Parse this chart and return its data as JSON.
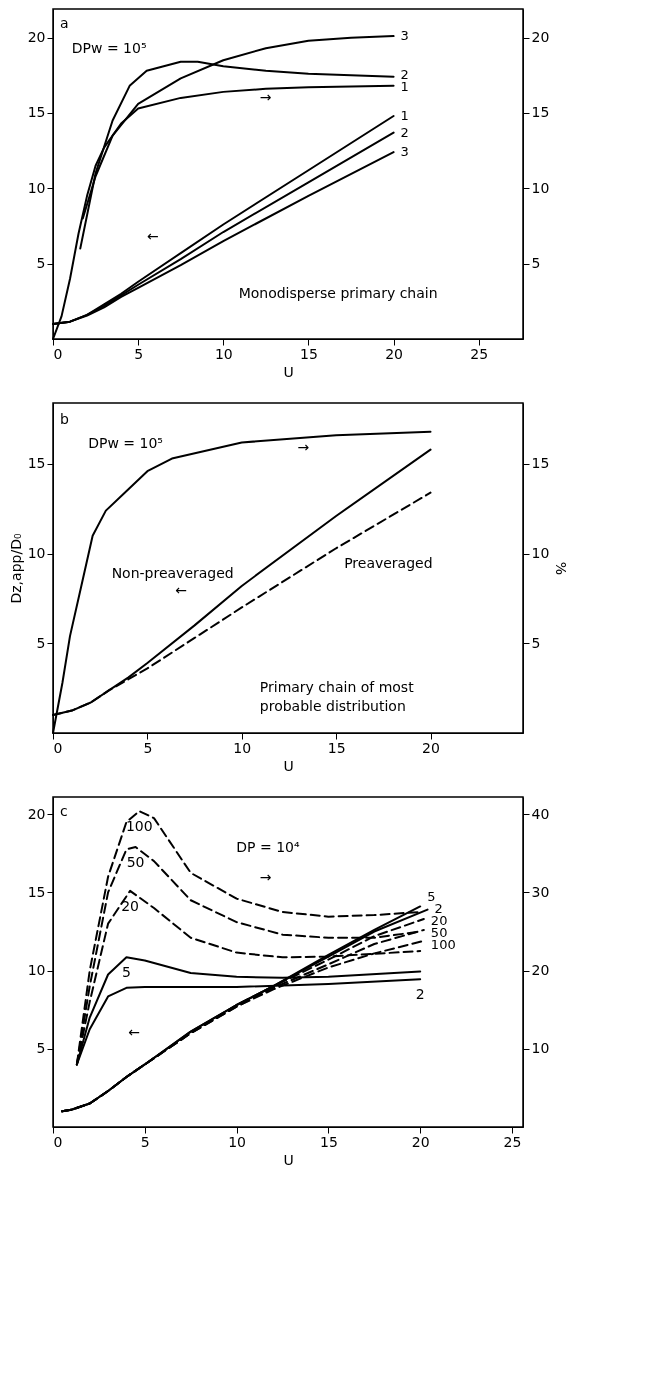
{
  "chart_data": [
    {
      "type": "line",
      "xlabel": "U",
      "xlim": [
        0,
        27.6
      ],
      "xticks": [
        0,
        5,
        10,
        15,
        20,
        25
      ],
      "ylim": [
        0,
        21.9
      ],
      "yticks": [
        5,
        10,
        15,
        20
      ],
      "y2lim": [
        0,
        21.9
      ],
      "y2ticks": [
        5,
        10,
        15,
        20
      ],
      "annotations": [
        "a",
        "DPw = 10⁵",
        "→",
        "←",
        "Monodisperse primary chain"
      ],
      "series": [
        {
          "name": "1",
          "color": "#000000",
          "axis": "y",
          "line_style": "solid",
          "x": [
            0,
            1,
            2,
            3,
            4,
            5,
            7.5,
            10,
            15,
            20
          ],
          "values": [
            1.0,
            1.15,
            1.6,
            2.3,
            3.0,
            3.8,
            5.7,
            7.6,
            11.2,
            14.8
          ]
        },
        {
          "name": "2",
          "color": "#000000",
          "axis": "y",
          "line_style": "solid",
          "x": [
            0,
            1,
            2,
            3,
            4,
            5,
            7.5,
            10,
            15,
            20
          ],
          "values": [
            1.0,
            1.15,
            1.6,
            2.2,
            2.9,
            3.6,
            5.3,
            7.1,
            10.4,
            13.7
          ]
        },
        {
          "name": "3",
          "color": "#000000",
          "axis": "y",
          "line_style": "solid",
          "x": [
            0,
            1,
            2,
            3,
            4,
            5,
            7.5,
            10,
            15,
            20
          ],
          "values": [
            1.0,
            1.15,
            1.55,
            2.1,
            2.8,
            3.4,
            4.9,
            6.5,
            9.5,
            12.4
          ]
        },
        {
          "name": "1",
          "color": "#000000",
          "axis": "y2",
          "line_style": "solid",
          "x": [
            0,
            0.5,
            1,
            1.5,
            2,
            2.5,
            3,
            4,
            5,
            7.5,
            10,
            12.5,
            15,
            20
          ],
          "values": [
            0,
            1.5,
            4.0,
            7.0,
            9.5,
            11.5,
            12.7,
            14.3,
            15.3,
            16.0,
            16.4,
            16.6,
            16.7,
            16.8
          ]
        },
        {
          "name": "2",
          "color": "#000000",
          "axis": "y2",
          "line_style": "solid",
          "x": [
            1.6,
            2.5,
            3.5,
            4.5,
            5.5,
            7.5,
            8.5,
            10,
            12.5,
            15,
            17.5,
            20
          ],
          "values": [
            6.0,
            11.0,
            14.5,
            16.8,
            17.8,
            18.4,
            18.4,
            18.1,
            17.8,
            17.6,
            17.5,
            17.4
          ]
        },
        {
          "name": "3",
          "color": "#000000",
          "axis": "y2",
          "line_style": "solid",
          "x": [
            1.75,
            2.5,
            3.5,
            5,
            7.5,
            10,
            12.5,
            15,
            17.5,
            20
          ],
          "values": [
            8.0,
            10.8,
            13.5,
            15.6,
            17.3,
            18.5,
            19.3,
            19.8,
            20.0,
            20.1
          ]
        }
      ]
    },
    {
      "type": "line",
      "xlabel": "U",
      "ylabel": "Dz,app/D₀",
      "y2label": "%",
      "xlim": [
        0,
        24.9
      ],
      "xticks": [
        0,
        5,
        10,
        15,
        20
      ],
      "ylim": [
        0,
        18.4
      ],
      "yticks": [
        5,
        10,
        15
      ],
      "y2lim": [
        0,
        18.4
      ],
      "y2ticks": [
        5,
        10,
        15
      ],
      "annotations": [
        "b",
        "DPw = 10⁵",
        "→",
        "←",
        "Primary chain of most",
        "probable distribution"
      ],
      "series": [
        {
          "name": "Non-preaveraged",
          "color": "#000000",
          "axis": "y",
          "line_style": "solid",
          "x": [
            0,
            1,
            2,
            3,
            4,
            5,
            7.5,
            10,
            15,
            20
          ],
          "values": [
            1.0,
            1.25,
            1.7,
            2.4,
            3.1,
            3.9,
            6.0,
            8.2,
            12.1,
            15.8
          ]
        },
        {
          "name": "Preaveraged",
          "color": "#000000",
          "axis": "y",
          "line_style": "dashed",
          "x": [
            0,
            1,
            2,
            3,
            4,
            5,
            7.5,
            10,
            15,
            20
          ],
          "values": [
            1.0,
            1.25,
            1.7,
            2.4,
            3.0,
            3.6,
            5.3,
            7.0,
            10.3,
            13.4
          ]
        },
        {
          "color": "#000000",
          "axis": "y2",
          "line_style": "solid",
          "x": [
            0,
            0.5,
            0.9,
            1.5,
            2.1,
            2.8,
            3.8,
            5,
            6.3,
            10,
            15,
            20
          ],
          "values": [
            0,
            2.8,
            5.4,
            8.2,
            11.0,
            12.4,
            13.4,
            14.6,
            15.3,
            16.2,
            16.6,
            16.8
          ]
        }
      ]
    },
    {
      "type": "line",
      "xlabel": "U",
      "xlim": [
        0,
        25.6
      ],
      "xticks": [
        0,
        5,
        10,
        15,
        20,
        25
      ],
      "ylim": [
        0,
        21.1
      ],
      "yticks": [
        5,
        10,
        15,
        20
      ],
      "y2lim": [
        0,
        42.2
      ],
      "y2ticks": [
        10,
        20,
        30,
        40
      ],
      "annotations": [
        "c",
        "DP = 10⁴",
        "→",
        "←"
      ],
      "series": [
        {
          "name": "5",
          "color": "#000000",
          "axis": "y",
          "line_style": "solid",
          "x": [
            0.5,
            1,
            2,
            3,
            4,
            5,
            7.5,
            10,
            12,
            15,
            17.5,
            20
          ],
          "values": [
            1.0,
            1.1,
            1.5,
            2.3,
            3.2,
            4.0,
            6.1,
            7.8,
            9.0,
            11.0,
            12.6,
            14.1
          ]
        },
        {
          "name": "2",
          "color": "#000000",
          "axis": "y",
          "line_style": "solid",
          "x": [
            0.5,
            1,
            2,
            3,
            4,
            5,
            7.5,
            10,
            12,
            15,
            17.5,
            20.4
          ],
          "values": [
            1.0,
            1.1,
            1.5,
            2.3,
            3.2,
            4.0,
            6.1,
            7.8,
            9.0,
            10.9,
            12.5,
            13.9
          ]
        },
        {
          "name": "20",
          "color": "#000000",
          "axis": "y",
          "line_style": "dashed",
          "x": [
            0.5,
            1,
            2,
            3,
            4,
            5,
            7.5,
            10,
            12,
            15,
            17.5,
            20.2
          ],
          "values": [
            1.0,
            1.1,
            1.5,
            2.3,
            3.2,
            4.0,
            6.0,
            7.8,
            9.0,
            10.7,
            12.2,
            13.3
          ]
        },
        {
          "name": "50",
          "color": "#000000",
          "axis": "y",
          "line_style": "dashed",
          "x": [
            0.5,
            1,
            2,
            3,
            4,
            5,
            7.5,
            10,
            12,
            15,
            17.5,
            20.2
          ],
          "values": [
            1.0,
            1.1,
            1.5,
            2.3,
            3.2,
            4.0,
            6.0,
            7.7,
            8.9,
            10.4,
            11.7,
            12.6
          ]
        },
        {
          "name": "100",
          "color": "#000000",
          "axis": "y",
          "line_style": "dashed",
          "x": [
            0.5,
            1,
            2,
            3,
            4,
            5,
            7.5,
            10,
            12,
            15,
            17.5,
            20.2
          ],
          "values": [
            1.0,
            1.1,
            1.5,
            2.3,
            3.2,
            4.0,
            6.0,
            7.7,
            8.8,
            10.2,
            11.1,
            11.9
          ]
        },
        {
          "name": "100",
          "color": "#000000",
          "axis": "y2",
          "line_style": "dashed",
          "x": [
            1.3,
            2,
            3,
            4,
            4.7,
            5.5,
            7.5,
            10,
            12.5,
            15,
            17.5,
            20
          ],
          "values": [
            8,
            20,
            32,
            39,
            40.4,
            39.5,
            32.5,
            29.2,
            27.5,
            26.9,
            27.1,
            27.5
          ]
        },
        {
          "name": "50",
          "color": "#000000",
          "axis": "y2",
          "line_style": "dashed",
          "x": [
            1.3,
            2,
            3,
            4,
            4.5,
            5.5,
            7.5,
            10,
            12.5,
            15,
            17.5,
            20
          ],
          "values": [
            8,
            18,
            30,
            35.5,
            35.8,
            34,
            29,
            26.2,
            24.6,
            24.2,
            24.2,
            25
          ]
        },
        {
          "name": "20",
          "color": "#000000",
          "axis": "y2",
          "line_style": "dashed",
          "x": [
            1.3,
            2,
            3,
            4.2,
            5.5,
            7.5,
            10,
            12.5,
            15,
            20
          ],
          "values": [
            8,
            16,
            26,
            30.2,
            28,
            24.2,
            22.3,
            21.7,
            21.8,
            22.5
          ]
        },
        {
          "name": "5",
          "color": "#000000",
          "axis": "y2",
          "line_style": "solid",
          "x": [
            1.3,
            2,
            3,
            4,
            5,
            7.5,
            10,
            12.5,
            15,
            20
          ],
          "values": [
            8,
            14,
            19.5,
            21.7,
            21.3,
            19.7,
            19.2,
            19.1,
            19.2,
            19.9
          ]
        },
        {
          "name": "2",
          "color": "#000000",
          "axis": "y2",
          "line_style": "solid",
          "x": [
            1.3,
            2,
            3,
            4,
            5,
            10,
            15,
            20
          ],
          "values": [
            8,
            12.5,
            16.7,
            17.8,
            17.9,
            17.9,
            18.3,
            18.9
          ]
        }
      ]
    }
  ]
}
